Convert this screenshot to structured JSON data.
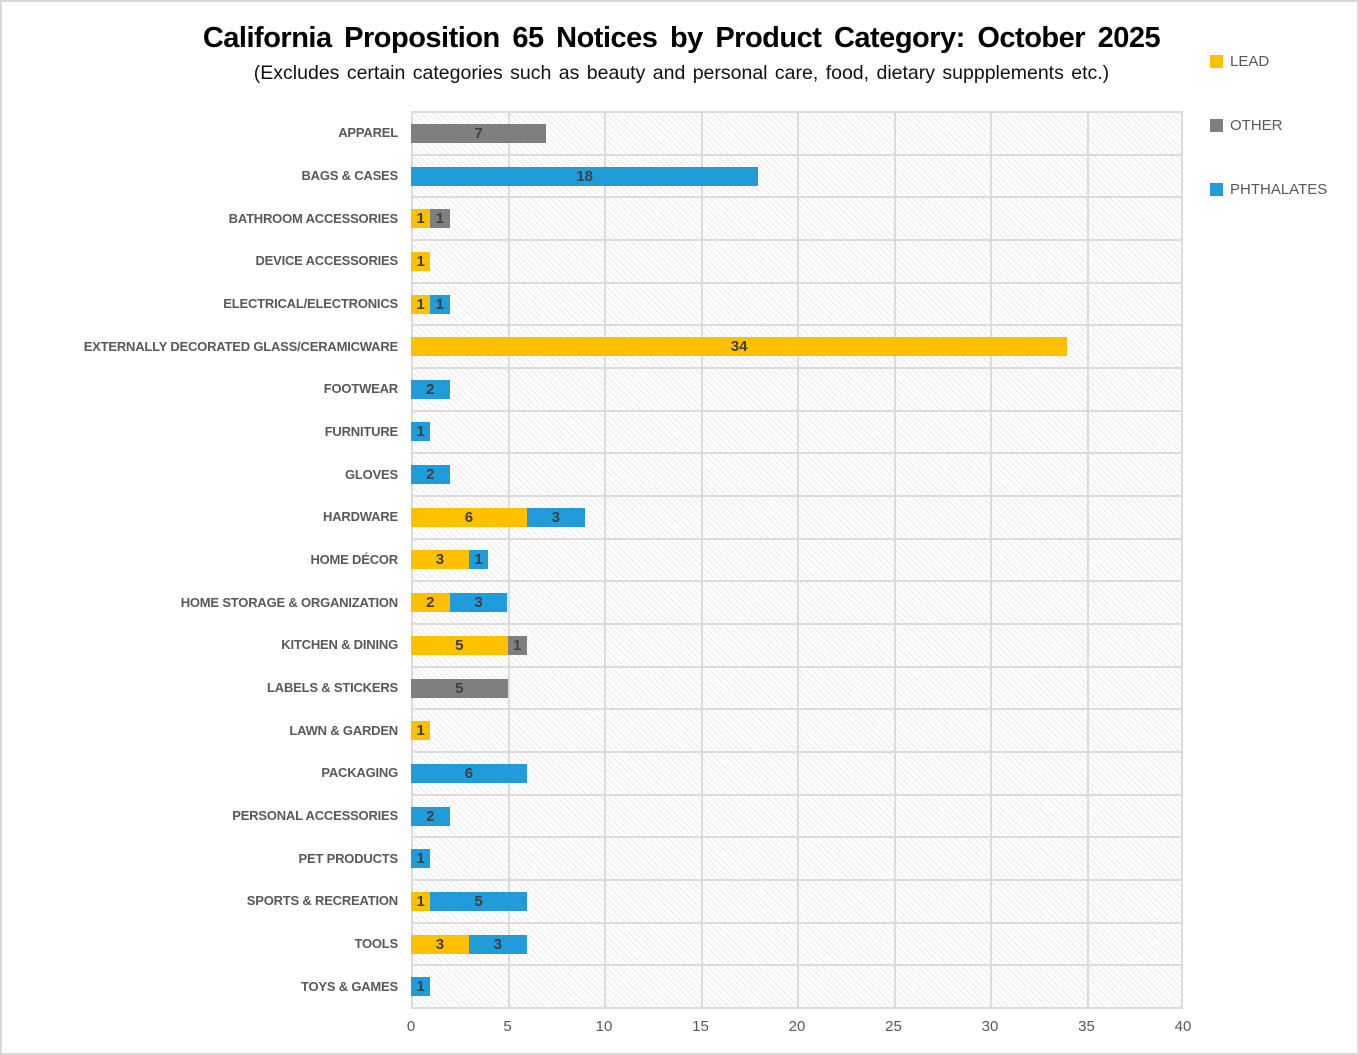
{
  "window": {
    "background_color": "#ffffff",
    "border_color": "#d9d9d9"
  },
  "chart_data": {
    "type": "bar",
    "orientation": "horizontal",
    "stacked": true,
    "title": "California Proposition 65 Notices by Product Category: October 2025",
    "subtitle": "(Excludes certain categories such as beauty and personal care, food, dietary suppplements etc.)",
    "categories": [
      "APPAREL",
      "BAGS & CASES",
      "BATHROOM ACCESSORIES",
      "DEVICE ACCESSORIES",
      "ELECTRICAL/ELECTRONICS",
      "EXTERNALLY DECORATED GLASS/CERAMICWARE",
      "FOOTWEAR",
      "FURNITURE",
      "GLOVES",
      "HARDWARE",
      "HOME DÉCOR",
      "HOME STORAGE & ORGANIZATION",
      "KITCHEN & DINING",
      "LABELS & STICKERS",
      "LAWN & GARDEN",
      "PACKAGING",
      "PERSONAL ACCESSORIES",
      "PET PRODUCTS",
      "SPORTS & RECREATION",
      "TOOLS",
      "TOYS & GAMES"
    ],
    "series": [
      {
        "name": "LEAD",
        "color": "#FFC000",
        "values": [
          0,
          0,
          1,
          1,
          1,
          34,
          0,
          0,
          0,
          6,
          3,
          2,
          5,
          0,
          1,
          0,
          0,
          0,
          1,
          3,
          0
        ]
      },
      {
        "name": "OTHER",
        "color": "#7F7F7F",
        "values": [
          7,
          0,
          1,
          0,
          0,
          0,
          0,
          0,
          0,
          0,
          0,
          0,
          1,
          5,
          0,
          0,
          0,
          0,
          0,
          0,
          0
        ]
      },
      {
        "name": "PHTHALATES",
        "color": "#1F9CD9",
        "values": [
          0,
          18,
          0,
          0,
          1,
          0,
          2,
          1,
          2,
          3,
          1,
          3,
          0,
          0,
          0,
          6,
          2,
          1,
          5,
          3,
          1
        ]
      }
    ],
    "xlim": [
      0,
      40
    ],
    "x_ticks": [
      0,
      5,
      10,
      15,
      20,
      25,
      30,
      35,
      40
    ],
    "grid": true,
    "legend_position": "right",
    "show_segment_labels": true,
    "segment_label_color": "#404040",
    "gridline_color": "#dcdcdc",
    "category_label_color": "#595959",
    "tick_label_color": "#595959"
  }
}
